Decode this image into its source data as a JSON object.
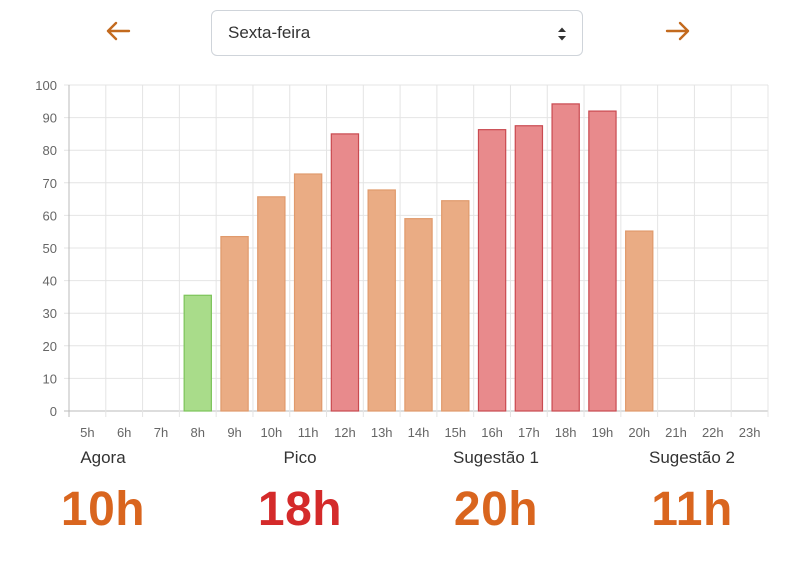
{
  "nav": {
    "prev_icon": "arrow-left-icon",
    "next_icon": "arrow-right-icon",
    "arrow_color": "#c36a1e",
    "day_select": {
      "value": "Sexta-feira",
      "icon": "sort-caret-icon"
    }
  },
  "chart_data": {
    "type": "bar",
    "categories": [
      "5h",
      "6h",
      "7h",
      "8h",
      "9h",
      "10h",
      "11h",
      "12h",
      "13h",
      "14h",
      "15h",
      "16h",
      "17h",
      "18h",
      "19h",
      "20h",
      "21h",
      "22h",
      "23h"
    ],
    "values": [
      0,
      0,
      0,
      35.5,
      53.5,
      65.7,
      72.7,
      85,
      67.8,
      59,
      64.5,
      86.3,
      87.5,
      94.2,
      92,
      55.2,
      0,
      0,
      0
    ],
    "ylim": [
      0,
      100
    ],
    "yticks": [
      0,
      10,
      20,
      30,
      40,
      50,
      60,
      70,
      80,
      90,
      100
    ],
    "grid": true,
    "colors": {
      "low_fill": "#a9dc8a",
      "low_stroke": "#7cc45a",
      "mid_fill": "#eaac84",
      "mid_stroke": "#e09a6c",
      "high_fill": "#e88a8c",
      "high_stroke": "#c94a50"
    }
  },
  "stats": [
    {
      "label": "Agora",
      "value": "10h",
      "color": "#d9651e"
    },
    {
      "label": "Pico",
      "value": "18h",
      "color": "#d42a2a"
    },
    {
      "label": "Sugestão 1",
      "value": "20h",
      "color": "#d9651e"
    },
    {
      "label": "Sugestão 2",
      "value": "11h",
      "color": "#d9651e"
    }
  ]
}
